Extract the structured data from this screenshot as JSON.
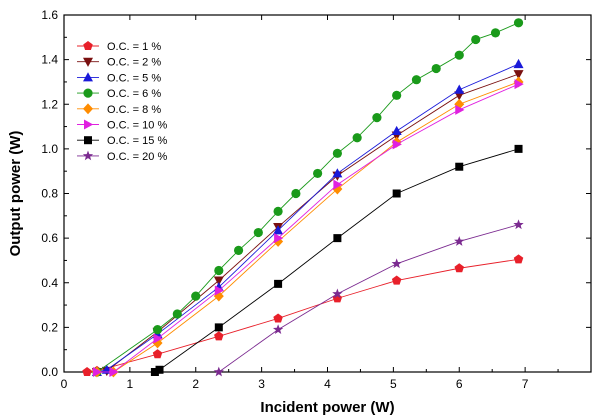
{
  "chart_data": {
    "type": "line",
    "title": "",
    "xlabel": "Incident power (W)",
    "ylabel": "Output power (W)",
    "xlim": [
      0,
      8
    ],
    "ylim": [
      0,
      1.6
    ],
    "x_ticks": [
      "0",
      "1",
      "2",
      "3",
      "4",
      "5",
      "6",
      "7"
    ],
    "y_ticks": [
      "0.0",
      "0.2",
      "0.4",
      "0.6",
      "0.8",
      "1.0",
      "1.2",
      "1.4",
      "1.6"
    ],
    "grid": false,
    "legend_position": "top-left",
    "series": [
      {
        "name": "O.C. = 1 %",
        "color": "#e8202a",
        "marker": "pentagon",
        "x": [
          0.35,
          0.5,
          1.42,
          2.35,
          3.25,
          4.15,
          5.05,
          6.0,
          6.9
        ],
        "y": [
          0.0,
          0.005,
          0.08,
          0.16,
          0.24,
          0.33,
          0.41,
          0.465,
          0.505
        ]
      },
      {
        "name": "O.C. = 2 %",
        "color": "#7a1010",
        "marker": "triangle-down",
        "x": [
          0.5,
          0.65,
          1.42,
          2.35,
          3.25,
          4.15,
          5.05,
          6.0,
          6.9
        ],
        "y": [
          0.0,
          0.005,
          0.18,
          0.41,
          0.65,
          0.88,
          1.06,
          1.24,
          1.335
        ]
      },
      {
        "name": "O.C. = 5 %",
        "color": "#1a1ad9",
        "marker": "triangle-up",
        "x": [
          0.5,
          0.65,
          1.42,
          2.35,
          3.25,
          4.15,
          5.05,
          6.0,
          6.9
        ],
        "y": [
          0.0,
          0.01,
          0.17,
          0.38,
          0.635,
          0.89,
          1.08,
          1.265,
          1.38
        ]
      },
      {
        "name": "O.C. = 6 %",
        "color": "#1a9a1a",
        "marker": "circle",
        "x": [
          0.5,
          1.42,
          1.72,
          2.0,
          2.35,
          2.65,
          2.95,
          3.25,
          3.52,
          3.85,
          4.15,
          4.45,
          4.75,
          5.05,
          5.35,
          5.65,
          6.0,
          6.25,
          6.55,
          6.9
        ],
        "y": [
          0.0,
          0.19,
          0.26,
          0.34,
          0.455,
          0.545,
          0.625,
          0.72,
          0.8,
          0.89,
          0.98,
          1.05,
          1.14,
          1.24,
          1.31,
          1.36,
          1.42,
          1.49,
          1.52,
          1.565
        ]
      },
      {
        "name": "O.C. = 8 %",
        "color": "#ff8c00",
        "marker": "diamond",
        "x": [
          0.5,
          0.75,
          1.42,
          2.35,
          3.25,
          4.15,
          5.05,
          6.0,
          6.9
        ],
        "y": [
          0.0,
          0.0,
          0.13,
          0.34,
          0.585,
          0.82,
          1.03,
          1.2,
          1.3
        ]
      },
      {
        "name": "O.C. = 10 %",
        "color": "#e020e0",
        "marker": "triangle-right",
        "x": [
          0.5,
          0.75,
          1.42,
          2.35,
          3.25,
          4.15,
          5.05,
          6.0,
          6.9
        ],
        "y": [
          0.0,
          0.0,
          0.15,
          0.365,
          0.6,
          0.84,
          1.02,
          1.175,
          1.29
        ]
      },
      {
        "name": "O.C. = 15 %",
        "color": "#000000",
        "marker": "square",
        "x": [
          1.38,
          1.45,
          2.35,
          3.25,
          4.15,
          5.05,
          6.0,
          6.9
        ],
        "y": [
          0.0,
          0.01,
          0.2,
          0.395,
          0.6,
          0.8,
          0.92,
          1.0
        ]
      },
      {
        "name": "O.C. = 20 %",
        "color": "#7b2a90",
        "marker": "star",
        "x": [
          2.35,
          3.25,
          4.15,
          5.05,
          6.0,
          6.9
        ],
        "y": [
          0.0,
          0.19,
          0.35,
          0.485,
          0.585,
          0.66
        ]
      }
    ]
  }
}
